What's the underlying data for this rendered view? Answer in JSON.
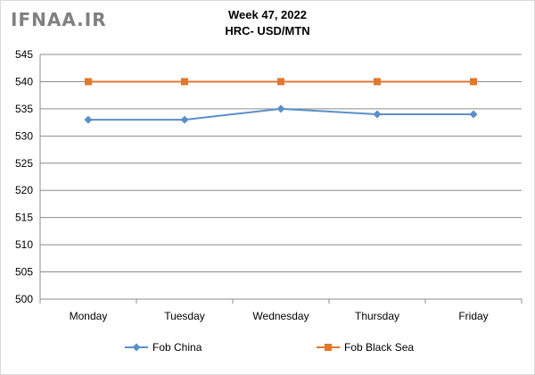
{
  "watermark": "IFNAA.IR",
  "chart_data": {
    "type": "line",
    "title": "Week 47, 2022",
    "subtitle": "HRC- USD/MTN",
    "categories": [
      "Monday",
      "Tuesday",
      "Wednesday",
      "Thursday",
      "Friday"
    ],
    "series": [
      {
        "name": "Fob China",
        "values": [
          533,
          533,
          535,
          534,
          534
        ],
        "color": "#5b8fc9",
        "marker": "diamond"
      },
      {
        "name": "Fob Black Sea",
        "values": [
          540,
          540,
          540,
          540,
          540
        ],
        "color": "#e0782f",
        "marker": "square"
      }
    ],
    "ylim": [
      500,
      545
    ],
    "yticks": [
      500,
      505,
      510,
      515,
      520,
      525,
      530,
      535,
      540,
      545
    ],
    "grid": true,
    "legend": "bottom"
  }
}
